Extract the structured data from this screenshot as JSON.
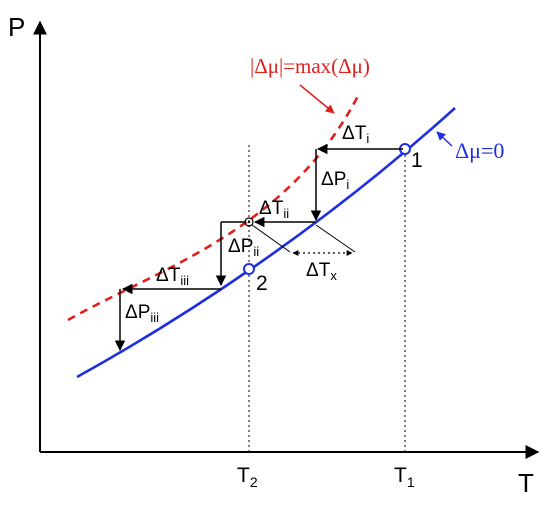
{
  "axes": {
    "y_label": "P",
    "x_label": "T"
  },
  "ticks": {
    "t2": {
      "main": "T",
      "sub": "2"
    },
    "t1": {
      "main": "T",
      "sub": "1"
    }
  },
  "curves": {
    "coexistence": {
      "label": "Δμ=0",
      "color": "#1f2fe0"
    },
    "limit": {
      "label": "|Δμ|=max(Δμ)",
      "color": "#e0201b"
    }
  },
  "points": {
    "p1": "1",
    "p2": "2"
  },
  "deltas": {
    "dTi": {
      "main": "ΔT",
      "sub": "i"
    },
    "dPi": {
      "main": "ΔP",
      "sub": "i"
    },
    "dTii": {
      "main": "ΔT",
      "sub": "ii"
    },
    "dPii": {
      "main": "ΔP",
      "sub": "ii"
    },
    "dTiii": {
      "main": "ΔT",
      "sub": "iii"
    },
    "dPiii": {
      "main": "ΔP",
      "sub": "iii"
    },
    "dTx": {
      "main": "ΔT",
      "sub": "x"
    }
  }
}
